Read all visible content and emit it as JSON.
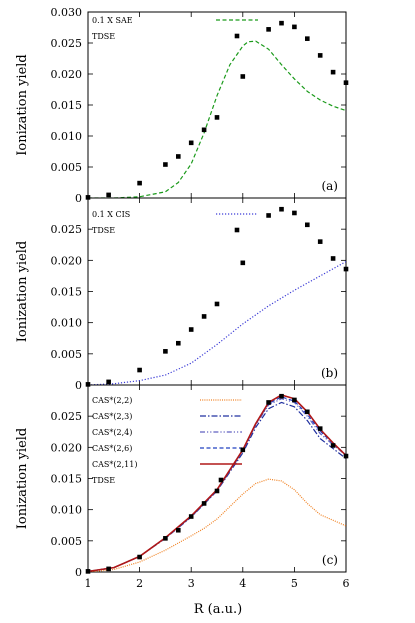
{
  "chart_data": {
    "type": "line",
    "xlabel": "R (a.u.)",
    "xlim": [
      1,
      6
    ],
    "xticks": [
      "1",
      "2",
      "3",
      "4",
      "5",
      "6"
    ],
    "panels": [
      {
        "label": "(a)",
        "ylabel": "Ionization yield",
        "ylim": [
          0,
          0.03
        ],
        "yticks": [
          "0",
          "0.005",
          "0.010",
          "0.015",
          "0.020",
          "0.025",
          "0.030"
        ],
        "series": [
          {
            "name": "0.1 X SAE",
            "color": "#1a9a1a",
            "dash": "dashed",
            "x": [
              1.0,
              1.5,
              2.0,
              2.5,
              2.75,
              3.0,
              3.25,
              3.5,
              3.75,
              4.0,
              4.1,
              4.25,
              4.5,
              4.75,
              5.0,
              5.25,
              5.5,
              5.75,
              6.0
            ],
            "y": [
              0.0,
              0.0,
              0.0002,
              0.001,
              0.0025,
              0.0055,
              0.0105,
              0.0165,
              0.0215,
              0.0245,
              0.0252,
              0.0253,
              0.024,
              0.0215,
              0.0192,
              0.0172,
              0.0158,
              0.0148,
              0.0141
            ]
          },
          {
            "name": "TDSE",
            "color": "#000000",
            "marker": "square",
            "x": [
              1.0,
              1.4,
              2.0,
              2.5,
              2.75,
              3.0,
              3.25,
              3.5,
              4.0,
              4.5,
              4.75,
              5.0,
              5.25,
              5.5,
              5.75,
              6.0
            ],
            "y": [
              0.0001,
              0.0005,
              0.0024,
              0.0054,
              0.0067,
              0.0089,
              0.011,
              0.013,
              0.0196,
              0.0272,
              0.0282,
              0.0276,
              0.0257,
              0.023,
              0.0203,
              0.0186
            ]
          }
        ]
      },
      {
        "label": "(b)",
        "ylabel": "Ionization yield",
        "ylim": [
          0,
          0.03
        ],
        "yticks": [
          "0",
          "0.005",
          "0.010",
          "0.015",
          "0.020",
          "0.025"
        ],
        "series": [
          {
            "name": "0.1 X CIS",
            "color": "#3b3bd6",
            "dash": "dotted",
            "x": [
              1.0,
              1.5,
              2.0,
              2.5,
              3.0,
              3.5,
              4.0,
              4.5,
              5.0,
              5.5,
              6.0
            ],
            "y": [
              0.0,
              0.0002,
              0.0007,
              0.0016,
              0.0035,
              0.0065,
              0.0098,
              0.0127,
              0.0152,
              0.0175,
              0.0198
            ]
          },
          {
            "name": "TDSE",
            "color": "#000000",
            "marker": "square",
            "x": [
              1.0,
              1.4,
              2.0,
              2.5,
              2.75,
              3.0,
              3.25,
              3.5,
              4.0,
              4.5,
              4.75,
              5.0,
              5.25,
              5.5,
              5.75,
              6.0
            ],
            "y": [
              0.0001,
              0.0005,
              0.0024,
              0.0054,
              0.0067,
              0.0089,
              0.011,
              0.013,
              0.0196,
              0.0272,
              0.0282,
              0.0276,
              0.0257,
              0.023,
              0.0203,
              0.0186
            ]
          }
        ]
      },
      {
        "label": "(c)",
        "ylabel": "Ionization yield",
        "ylim": [
          0,
          0.03
        ],
        "yticks": [
          "0",
          "0.005",
          "0.010",
          "0.015",
          "0.020",
          "0.025"
        ],
        "series": [
          {
            "name": "CAS*(2,2)",
            "color": "#f08020",
            "dash": "dotted-fine",
            "x": [
              1.0,
              1.5,
              2.0,
              2.5,
              3.0,
              3.25,
              3.5,
              3.75,
              4.0,
              4.25,
              4.5,
              4.75,
              5.0,
              5.25,
              5.5,
              5.75,
              6.0
            ],
            "y": [
              0.0,
              0.0004,
              0.0016,
              0.0035,
              0.0058,
              0.007,
              0.0085,
              0.0105,
              0.0125,
              0.0142,
              0.0149,
              0.0146,
              0.0132,
              0.011,
              0.0092,
              0.0083,
              0.0074
            ]
          },
          {
            "name": "CAS*(2,3)",
            "color": "#2030a0",
            "dash": "dashdot",
            "x": [
              1.0,
              1.5,
              2.0,
              2.5,
              3.0,
              3.5,
              4.0,
              4.25,
              4.5,
              4.75,
              5.0,
              5.25,
              5.5,
              5.75,
              6.0
            ],
            "y": [
              0.0001,
              0.0007,
              0.0025,
              0.0054,
              0.0088,
              0.013,
              0.0191,
              0.0232,
              0.0262,
              0.0272,
              0.0265,
              0.0243,
              0.0214,
              0.0198,
              0.0182
            ]
          },
          {
            "name": "CAS*(2,4)",
            "color": "#6060c0",
            "dash": "dashdotdot",
            "x": [
              1.0,
              1.5,
              2.0,
              2.5,
              3.0,
              3.5,
              4.0,
              4.25,
              4.5,
              4.75,
              5.0,
              5.25,
              5.5,
              5.75,
              6.0
            ],
            "y": [
              0.0001,
              0.0007,
              0.0025,
              0.0055,
              0.0089,
              0.0131,
              0.0194,
              0.0236,
              0.0268,
              0.0278,
              0.0272,
              0.025,
              0.0222,
              0.0204,
              0.0187
            ]
          },
          {
            "name": "CAS*(2,6)",
            "color": "#2040c0",
            "dash": "dashed",
            "x": [
              1.0,
              1.5,
              2.0,
              2.5,
              3.0,
              3.5,
              4.0,
              4.25,
              4.5,
              4.75,
              5.0,
              5.25,
              5.5,
              5.75,
              6.0
            ],
            "y": [
              0.0001,
              0.0007,
              0.0025,
              0.0055,
              0.0089,
              0.0131,
              0.0195,
              0.0237,
              0.027,
              0.0281,
              0.0274,
              0.0253,
              0.0226,
              0.0206,
              0.0188
            ]
          },
          {
            "name": "CAS*(2,11)",
            "color": "#b01818",
            "dash": "solid",
            "x": [
              1.0,
              1.5,
              2.0,
              2.5,
              3.0,
              3.5,
              4.0,
              4.25,
              4.5,
              4.75,
              5.0,
              5.25,
              5.5,
              5.75,
              6.0
            ],
            "y": [
              0.0001,
              0.0007,
              0.0025,
              0.0055,
              0.009,
              0.0132,
              0.0196,
              0.0238,
              0.0272,
              0.0284,
              0.0278,
              0.0257,
              0.0229,
              0.0207,
              0.0187
            ]
          },
          {
            "name": "TDSE",
            "color": "#000000",
            "marker": "square",
            "x": [
              1.0,
              1.4,
              2.0,
              2.5,
              2.75,
              3.0,
              3.25,
              3.5,
              4.0,
              4.5,
              4.75,
              5.0,
              5.25,
              5.5,
              5.75,
              6.0
            ],
            "y": [
              0.0001,
              0.0005,
              0.0024,
              0.0054,
              0.0067,
              0.0089,
              0.011,
              0.013,
              0.0196,
              0.0272,
              0.0282,
              0.0276,
              0.0257,
              0.023,
              0.0203,
              0.0186
            ]
          }
        ]
      }
    ]
  }
}
